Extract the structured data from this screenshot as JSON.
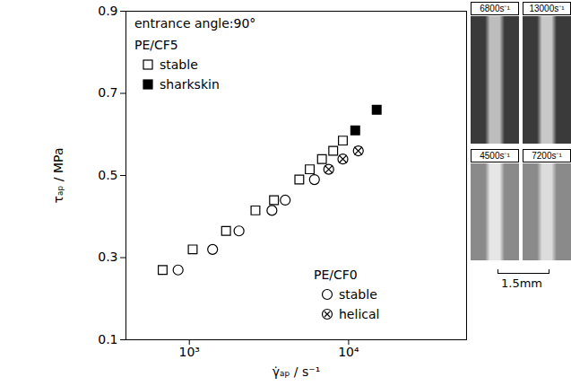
{
  "chart_data": {
    "type": "scatter",
    "annotation": "entrance angle:90°",
    "xlabel": "γ̇ₐₚ / s⁻¹",
    "ylabel": "τₐₚ / MPa",
    "log": "x",
    "xlim": [
      400,
      55000
    ],
    "xticks": [
      {
        "value": 1000,
        "label": "10³"
      },
      {
        "value": 10000,
        "label": "10⁴"
      }
    ],
    "ylim": [
      0.1,
      0.9
    ],
    "yticks": [
      0.1,
      0.3,
      0.5,
      0.7,
      0.9
    ],
    "legend_groups": [
      {
        "title": "PE/CF5",
        "legend": "top-left"
      },
      {
        "title": "PE/CF0",
        "legend": "bottom-right"
      }
    ],
    "series": [
      {
        "name": "stable",
        "group": "PE/CF5",
        "marker": "square_open",
        "color": "#000000",
        "x": [
          680,
          1050,
          1700,
          2600,
          3400,
          4900,
          5700,
          6800,
          8000,
          9200
        ],
        "values": [
          0.27,
          0.32,
          0.365,
          0.415,
          0.44,
          0.49,
          0.515,
          0.54,
          0.56,
          0.585
        ]
      },
      {
        "name": "sharkskin",
        "group": "PE/CF5",
        "marker": "square_filled",
        "color": "#000000",
        "x": [
          11000,
          15000
        ],
        "values": [
          0.61,
          0.66
        ]
      },
      {
        "name": "stable",
        "group": "PE/CF0",
        "marker": "circle_open",
        "color": "#000000",
        "x": [
          850,
          1400,
          2050,
          3300,
          4000,
          6100
        ],
        "values": [
          0.27,
          0.32,
          0.365,
          0.415,
          0.44,
          0.49
        ]
      },
      {
        "name": "helical",
        "group": "PE/CF0",
        "marker": "circle_cross",
        "color": "#000000",
        "x": [
          7500,
          9200,
          11500
        ],
        "values": [
          0.515,
          0.54,
          0.56
        ]
      }
    ],
    "insets": [
      {
        "label": "6800s⁻¹"
      },
      {
        "label": "13000s⁻¹"
      },
      {
        "label": "4500s⁻¹"
      },
      {
        "label": "7200s⁻¹"
      }
    ],
    "scale_bar": "1.5mm"
  }
}
